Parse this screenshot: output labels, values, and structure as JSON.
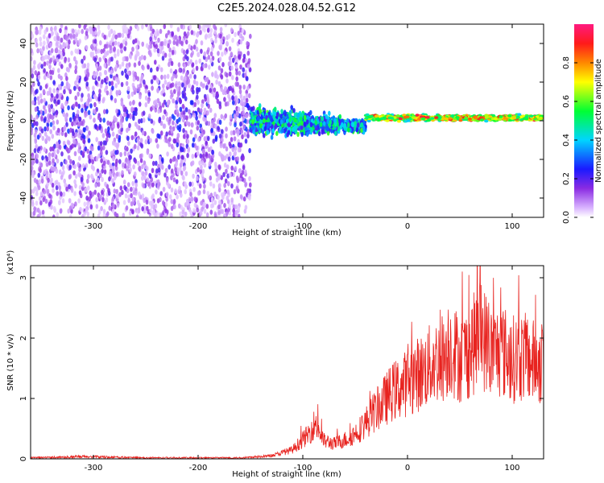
{
  "title": "C2E5.2024.028.04.52.G12",
  "chart_data": [
    {
      "type": "heatmap",
      "xlabel": "Height of straight line (km)",
      "ylabel": "Frequency (Hz)",
      "xlim": [
        -360,
        130
      ],
      "ylim": [
        -50,
        50
      ],
      "x_ticks": [
        -300,
        -200,
        -100,
        0,
        100
      ],
      "y_ticks": [
        -40,
        -20,
        0,
        20,
        40
      ],
      "x_tick_labels": [
        "-300",
        "-200",
        "-100",
        "0",
        "100"
      ],
      "y_tick_labels": [
        "-40",
        "-20",
        "0",
        "20",
        "40"
      ],
      "colorbar": {
        "label": "Normalized spectral amplitude",
        "range": [
          0.0,
          1.0
        ],
        "ticks": [
          0.0,
          0.2,
          0.4,
          0.6,
          0.8
        ],
        "tick_labels": [
          "0.0",
          "0.2",
          "0.4",
          "0.6",
          "0.8"
        ]
      },
      "features": [
        {
          "description_x_range": [
            -360,
            -150
          ],
          "freq_spread_hz": 50,
          "amplitude": [
            0.05,
            0.25
          ]
        },
        {
          "description_x_range": [
            -150,
            -40
          ],
          "freq_spread_hz": 12,
          "amplitude": [
            0.2,
            0.6
          ]
        },
        {
          "description_x_range": [
            -40,
            130
          ],
          "freq_center_hz": 1.5,
          "freq_spread_hz": 2.5,
          "amplitude": [
            0.5,
            0.95
          ]
        }
      ],
      "colors": {
        "low": "#8a2be2",
        "high": "#ff1a1a"
      }
    },
    {
      "type": "line",
      "xlabel": "Height of straight line (km)",
      "ylabel": "SNR (10 * v/v)",
      "yscale_label": "(x10⁴)",
      "xlim": [
        -360,
        130
      ],
      "ylim": [
        0,
        3.2
      ],
      "x_ticks": [
        -300,
        -200,
        -100,
        0,
        100
      ],
      "y_ticks": [
        0,
        1,
        2,
        3
      ],
      "x_tick_labels": [
        "-300",
        "-200",
        "-100",
        "0",
        "100"
      ],
      "y_tick_labels": [
        "0",
        "1",
        "2",
        "3"
      ],
      "series": [
        {
          "color": "#e8231f",
          "x": [
            -360,
            -310,
            -250,
            -200,
            -160,
            -130,
            -110,
            -95,
            -88,
            -80,
            -70,
            -55,
            -45,
            -35,
            -25,
            -15,
            -5,
            5,
            15,
            25,
            35,
            40,
            50,
            60,
            70,
            80,
            90,
            100,
            110,
            120,
            130
          ],
          "y": [
            0.02,
            0.04,
            0.02,
            0.02,
            0.02,
            0.05,
            0.15,
            0.4,
            0.6,
            0.3,
            0.25,
            0.35,
            0.5,
            0.7,
            0.9,
            1.1,
            1.2,
            1.35,
            1.45,
            1.6,
            1.7,
            1.9,
            1.65,
            1.8,
            2.1,
            1.75,
            1.8,
            1.65,
            1.7,
            1.6,
            1.6
          ]
        }
      ]
    }
  ]
}
